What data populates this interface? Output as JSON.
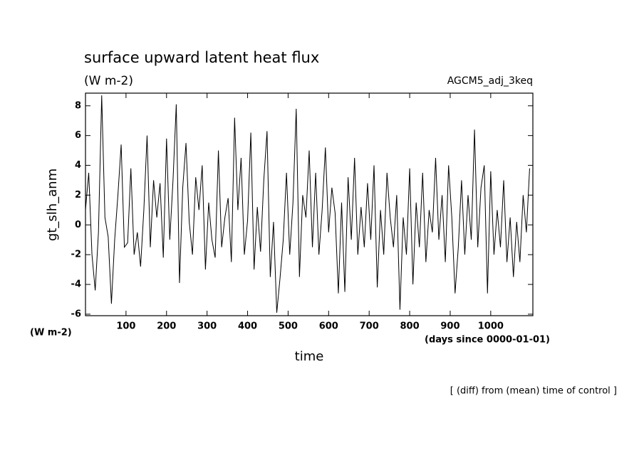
{
  "chart_data": {
    "type": "line",
    "title": "surface upward latent heat flux",
    "subtitle": "(W m-2)",
    "annotation": "AGCM5_adj_3keq",
    "ylabel": "gt_slh_anm",
    "yunits": "(W m-2)",
    "xunits": "(days since 0000-01-01)",
    "xlabel": "time",
    "footnote": "[ (diff) from (mean) time of control ]",
    "color": "#000000",
    "xlim": [
      0,
      1104
    ],
    "ylim": [
      -6.1,
      8.85
    ],
    "xticks": [
      100,
      200,
      300,
      400,
      500,
      600,
      700,
      800,
      900,
      1000
    ],
    "yticks": [
      -6,
      -4,
      -2,
      0,
      2,
      4,
      6,
      8
    ],
    "x": [
      0,
      8,
      16,
      24,
      32,
      40,
      48,
      56,
      64,
      72,
      80,
      88,
      96,
      104,
      112,
      120,
      128,
      136,
      144,
      152,
      160,
      168,
      176,
      184,
      192,
      200,
      208,
      216,
      224,
      232,
      240,
      248,
      256,
      264,
      272,
      280,
      288,
      296,
      304,
      312,
      320,
      328,
      336,
      344,
      352,
      360,
      368,
      376,
      384,
      392,
      400,
      408,
      416,
      424,
      432,
      440,
      448,
      456,
      464,
      472,
      480,
      488,
      496,
      504,
      512,
      520,
      528,
      536,
      544,
      552,
      560,
      568,
      576,
      584,
      592,
      600,
      608,
      616,
      624,
      632,
      640,
      648,
      656,
      664,
      672,
      680,
      688,
      696,
      704,
      712,
      720,
      728,
      736,
      744,
      752,
      760,
      768,
      776,
      784,
      792,
      800,
      808,
      816,
      824,
      832,
      840,
      848,
      856,
      864,
      872,
      880,
      888,
      896,
      904,
      912,
      920,
      928,
      936,
      944,
      952,
      960,
      968,
      976,
      984,
      992,
      1000,
      1008,
      1016,
      1024,
      1032,
      1040,
      1048,
      1056,
      1064,
      1072,
      1080,
      1088,
      1096
    ],
    "values": [
      1.0,
      3.5,
      -2.0,
      -4.4,
      -0.5,
      8.7,
      0.5,
      -0.8,
      -5.3,
      -1.0,
      2.0,
      5.4,
      -1.5,
      -1.2,
      3.8,
      -2.0,
      -0.5,
      -2.8,
      1.0,
      6.0,
      -1.5,
      3.0,
      0.5,
      2.8,
      -2.2,
      5.8,
      -1.0,
      3.0,
      8.1,
      -3.9,
      2.5,
      5.5,
      0.2,
      -2.0,
      3.2,
      1.0,
      4.0,
      -3.0,
      1.5,
      -1.0,
      -2.2,
      5.0,
      -1.5,
      0.5,
      1.8,
      -2.5,
      7.2,
      1.0,
      4.5,
      -2.0,
      0.3,
      6.2,
      -3.0,
      1.2,
      -1.8,
      3.0,
      6.3,
      -3.5,
      0.2,
      -5.9,
      -3.6,
      -1.0,
      3.5,
      -2.0,
      1.5,
      7.8,
      -3.5,
      2.0,
      0.5,
      5.0,
      -1.5,
      3.5,
      -2.0,
      1.0,
      5.2,
      -0.5,
      2.5,
      0.8,
      -4.6,
      1.5,
      -4.5,
      3.2,
      -1.0,
      4.5,
      -2.0,
      1.2,
      -1.5,
      2.8,
      -1.0,
      4.0,
      -4.2,
      1.0,
      -2.0,
      3.5,
      0.5,
      -1.5,
      2.0,
      -5.7,
      0.5,
      -2.0,
      3.8,
      -4.0,
      1.5,
      -1.5,
      3.5,
      -2.5,
      1.0,
      -0.5,
      4.5,
      -1.0,
      2.0,
      -2.5,
      4.0,
      0.5,
      -4.6,
      -1.5,
      3.0,
      -2.0,
      2.0,
      -1.0,
      6.4,
      -1.5,
      2.5,
      4.0,
      -4.6,
      3.6,
      -2.0,
      1.0,
      -1.5,
      3.0,
      -2.5,
      0.5,
      -3.5,
      0.2,
      -2.5,
      2.0,
      -0.5,
      3.8
    ]
  }
}
